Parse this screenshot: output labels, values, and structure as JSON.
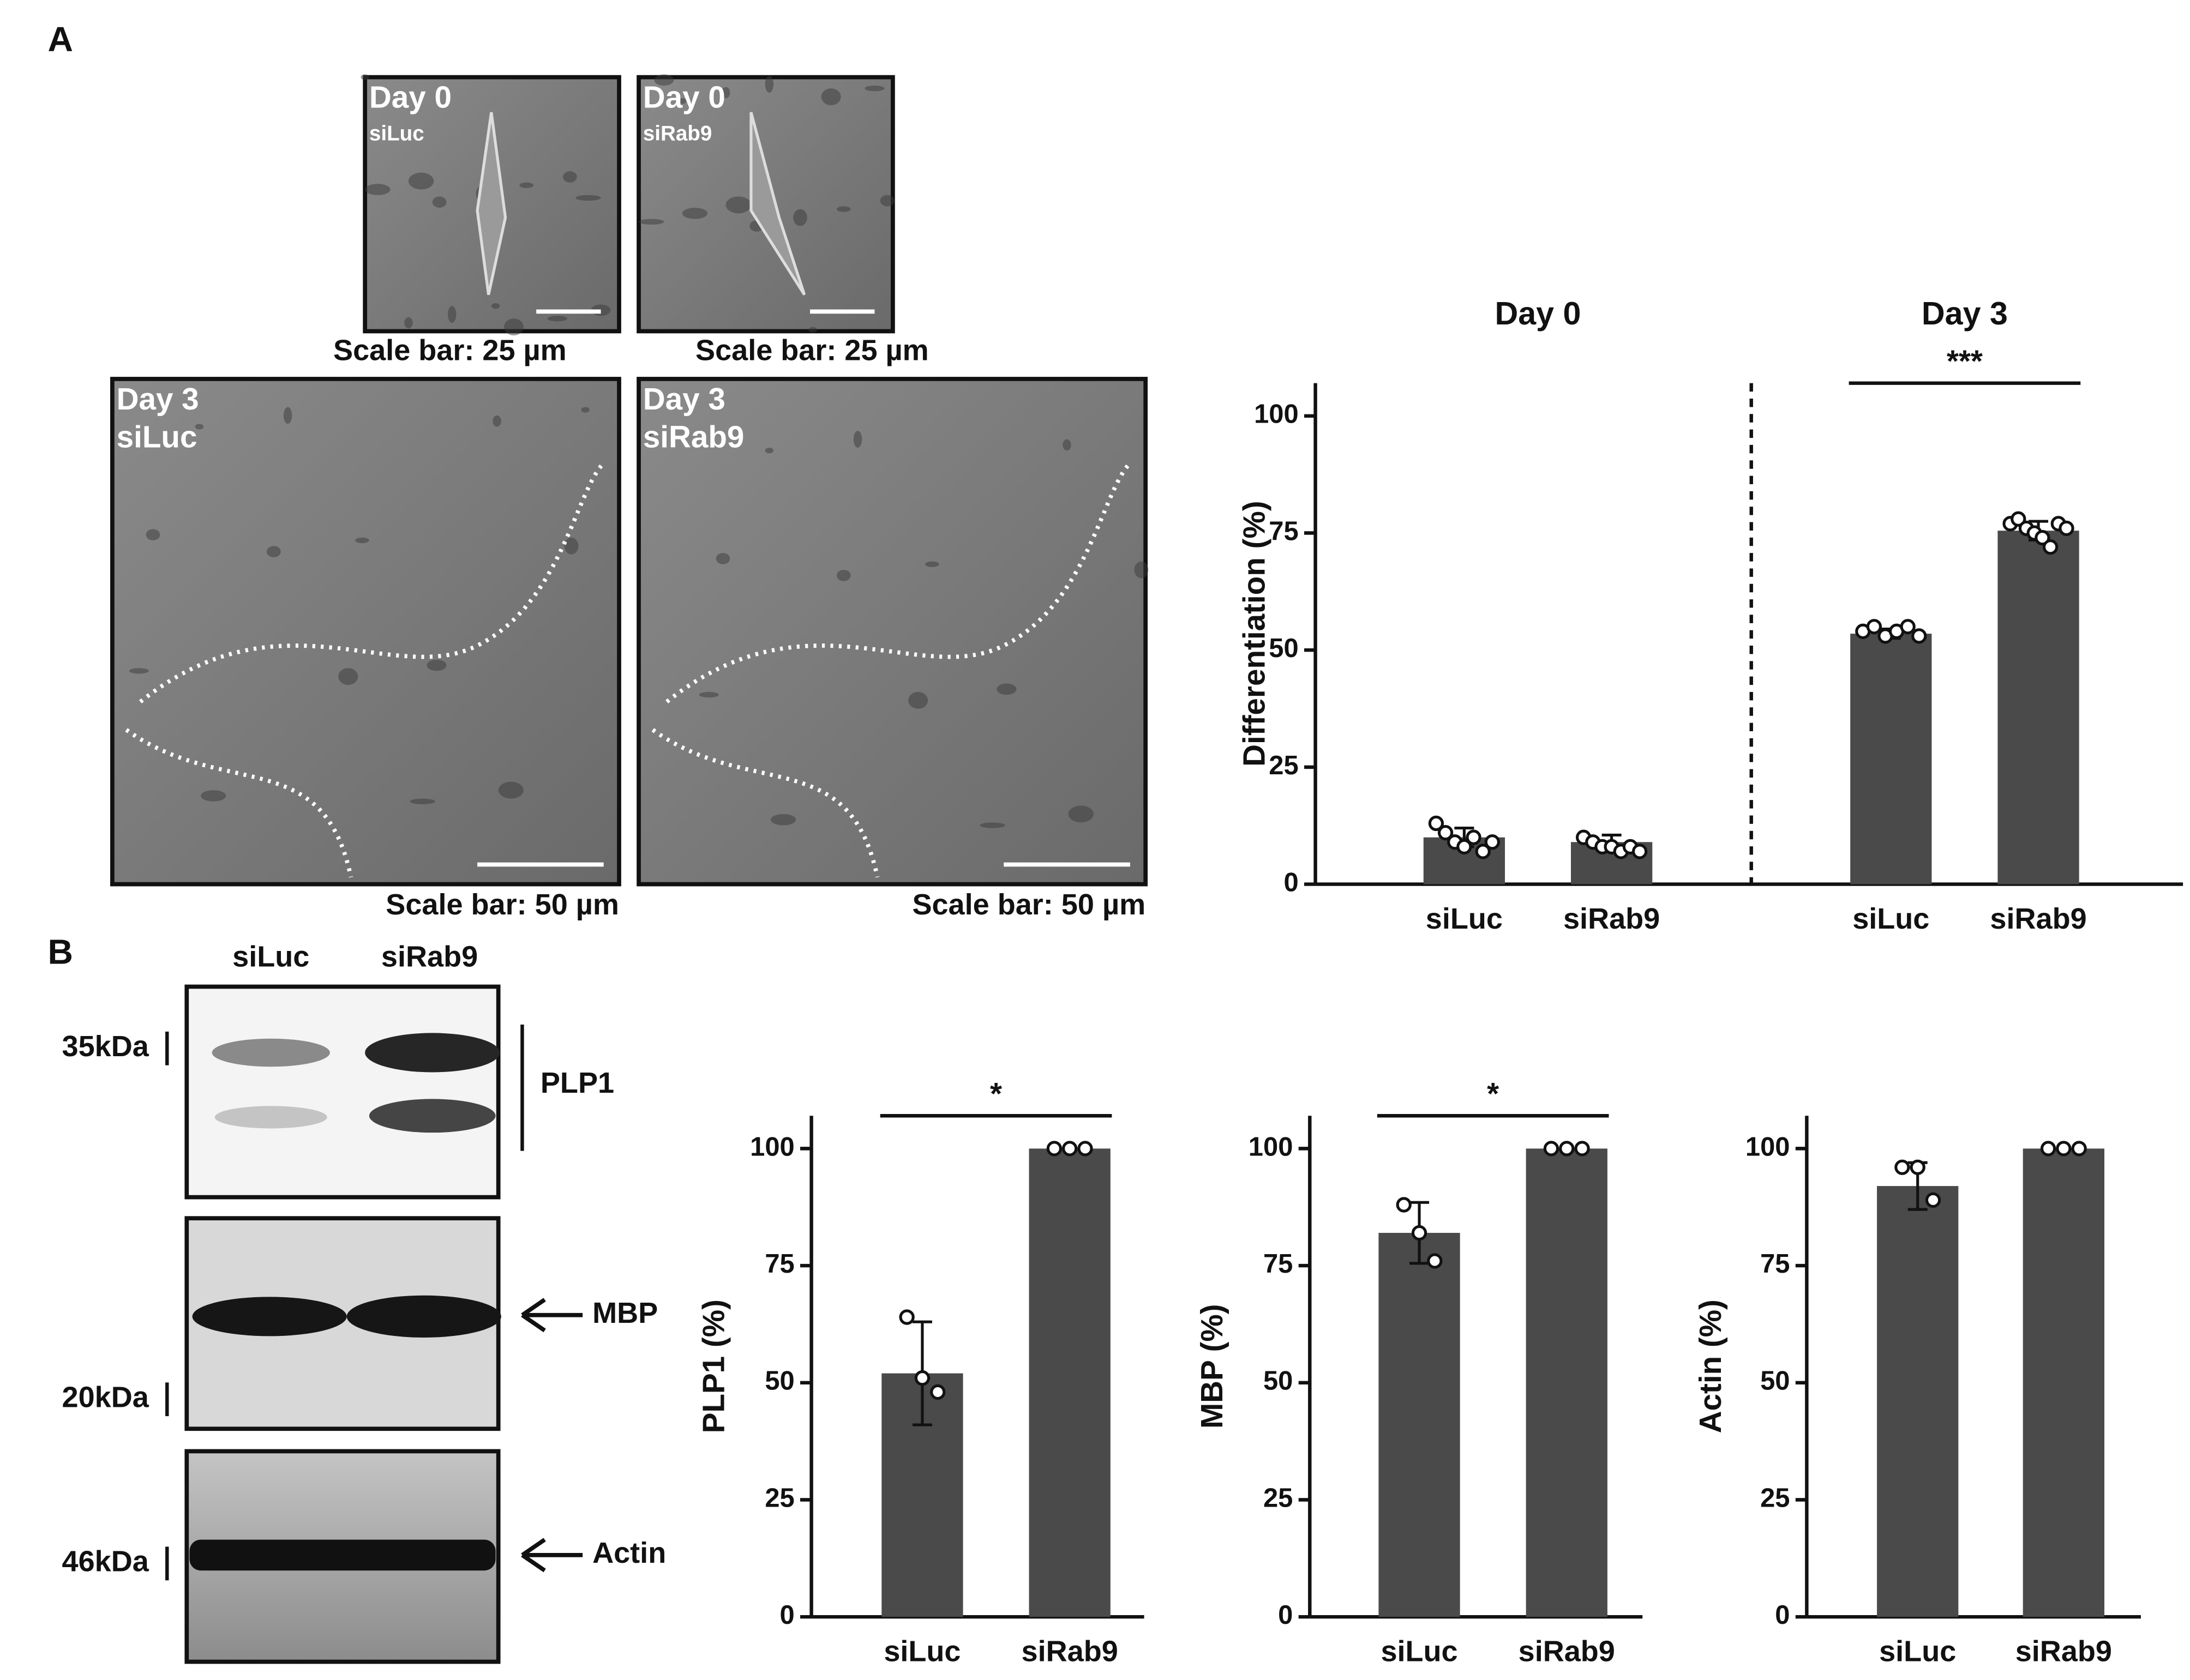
{
  "panel_labels": [
    "A",
    "B"
  ],
  "micrographs": [
    {
      "day": "Day 0",
      "sample": "siLuc",
      "scale_bar": "Scale bar: 25 µm"
    },
    {
      "day": "Day 0",
      "sample": "siRab9",
      "scale_bar": "Scale bar: 25 µm"
    },
    {
      "day": "Day 3",
      "sample": "siLuc",
      "scale_bar": "Scale bar: 50 µm"
    },
    {
      "day": "Day 3",
      "sample": "siRab9",
      "scale_bar": "Scale bar: 50 µm"
    }
  ],
  "western_blot": {
    "lanes": [
      "siLuc",
      "siRab9"
    ],
    "markers": [
      "35kDa",
      "20kDa",
      "46kDa"
    ],
    "proteins": [
      "PLP1",
      "MBP",
      "Actin"
    ]
  },
  "chart_data": [
    {
      "type": "bar",
      "ylabel": "Differentiation (%)",
      "groups": [
        "Day 0",
        "Day 3"
      ],
      "categories": [
        "siLuc",
        "siRab9",
        "siLuc",
        "siRab9"
      ],
      "values": [
        10,
        9,
        53.5,
        75.5
      ],
      "errors": [
        2,
        1.5,
        1,
        2
      ],
      "points": [
        [
          13,
          11,
          9,
          8,
          10,
          7,
          9
        ],
        [
          10,
          9,
          8,
          8,
          7,
          8,
          7
        ],
        [
          54,
          55,
          53,
          54,
          55,
          53
        ],
        [
          77,
          78,
          76,
          75,
          74,
          72,
          77,
          76
        ]
      ],
      "annotation": "***",
      "color": "#4a4a4a",
      "ylim": [
        0,
        107
      ],
      "yticks": [
        0,
        25,
        50,
        75,
        100
      ]
    },
    {
      "type": "bar",
      "ylabel": "PLP1 (%)",
      "categories": [
        "siLuc",
        "siRab9"
      ],
      "values": [
        52,
        100
      ],
      "errors": [
        11,
        0
      ],
      "points": [
        [
          64,
          51,
          48
        ],
        [
          100,
          100,
          100
        ]
      ],
      "annotation": "*",
      "color": "#4a4a4a",
      "ylim": [
        0,
        107
      ],
      "yticks": [
        0,
        25,
        50,
        75,
        100
      ]
    },
    {
      "type": "bar",
      "ylabel": "MBP (%)",
      "categories": [
        "siLuc",
        "siRab9"
      ],
      "values": [
        82,
        100
      ],
      "errors": [
        6.5,
        0
      ],
      "points": [
        [
          88,
          82,
          76
        ],
        [
          100,
          100,
          100
        ]
      ],
      "annotation": "*",
      "color": "#4a4a4a",
      "ylim": [
        0,
        107
      ],
      "yticks": [
        0,
        25,
        50,
        75,
        100
      ]
    },
    {
      "type": "bar",
      "ylabel": "Actin (%)",
      "categories": [
        "siLuc",
        "siRab9"
      ],
      "values": [
        92,
        100
      ],
      "errors": [
        5,
        0
      ],
      "points": [
        [
          96,
          96,
          89
        ],
        [
          100,
          100,
          100
        ]
      ],
      "color": "#4a4a4a",
      "ylim": [
        0,
        107
      ],
      "yticks": [
        0,
        25,
        50,
        75,
        100
      ]
    }
  ]
}
